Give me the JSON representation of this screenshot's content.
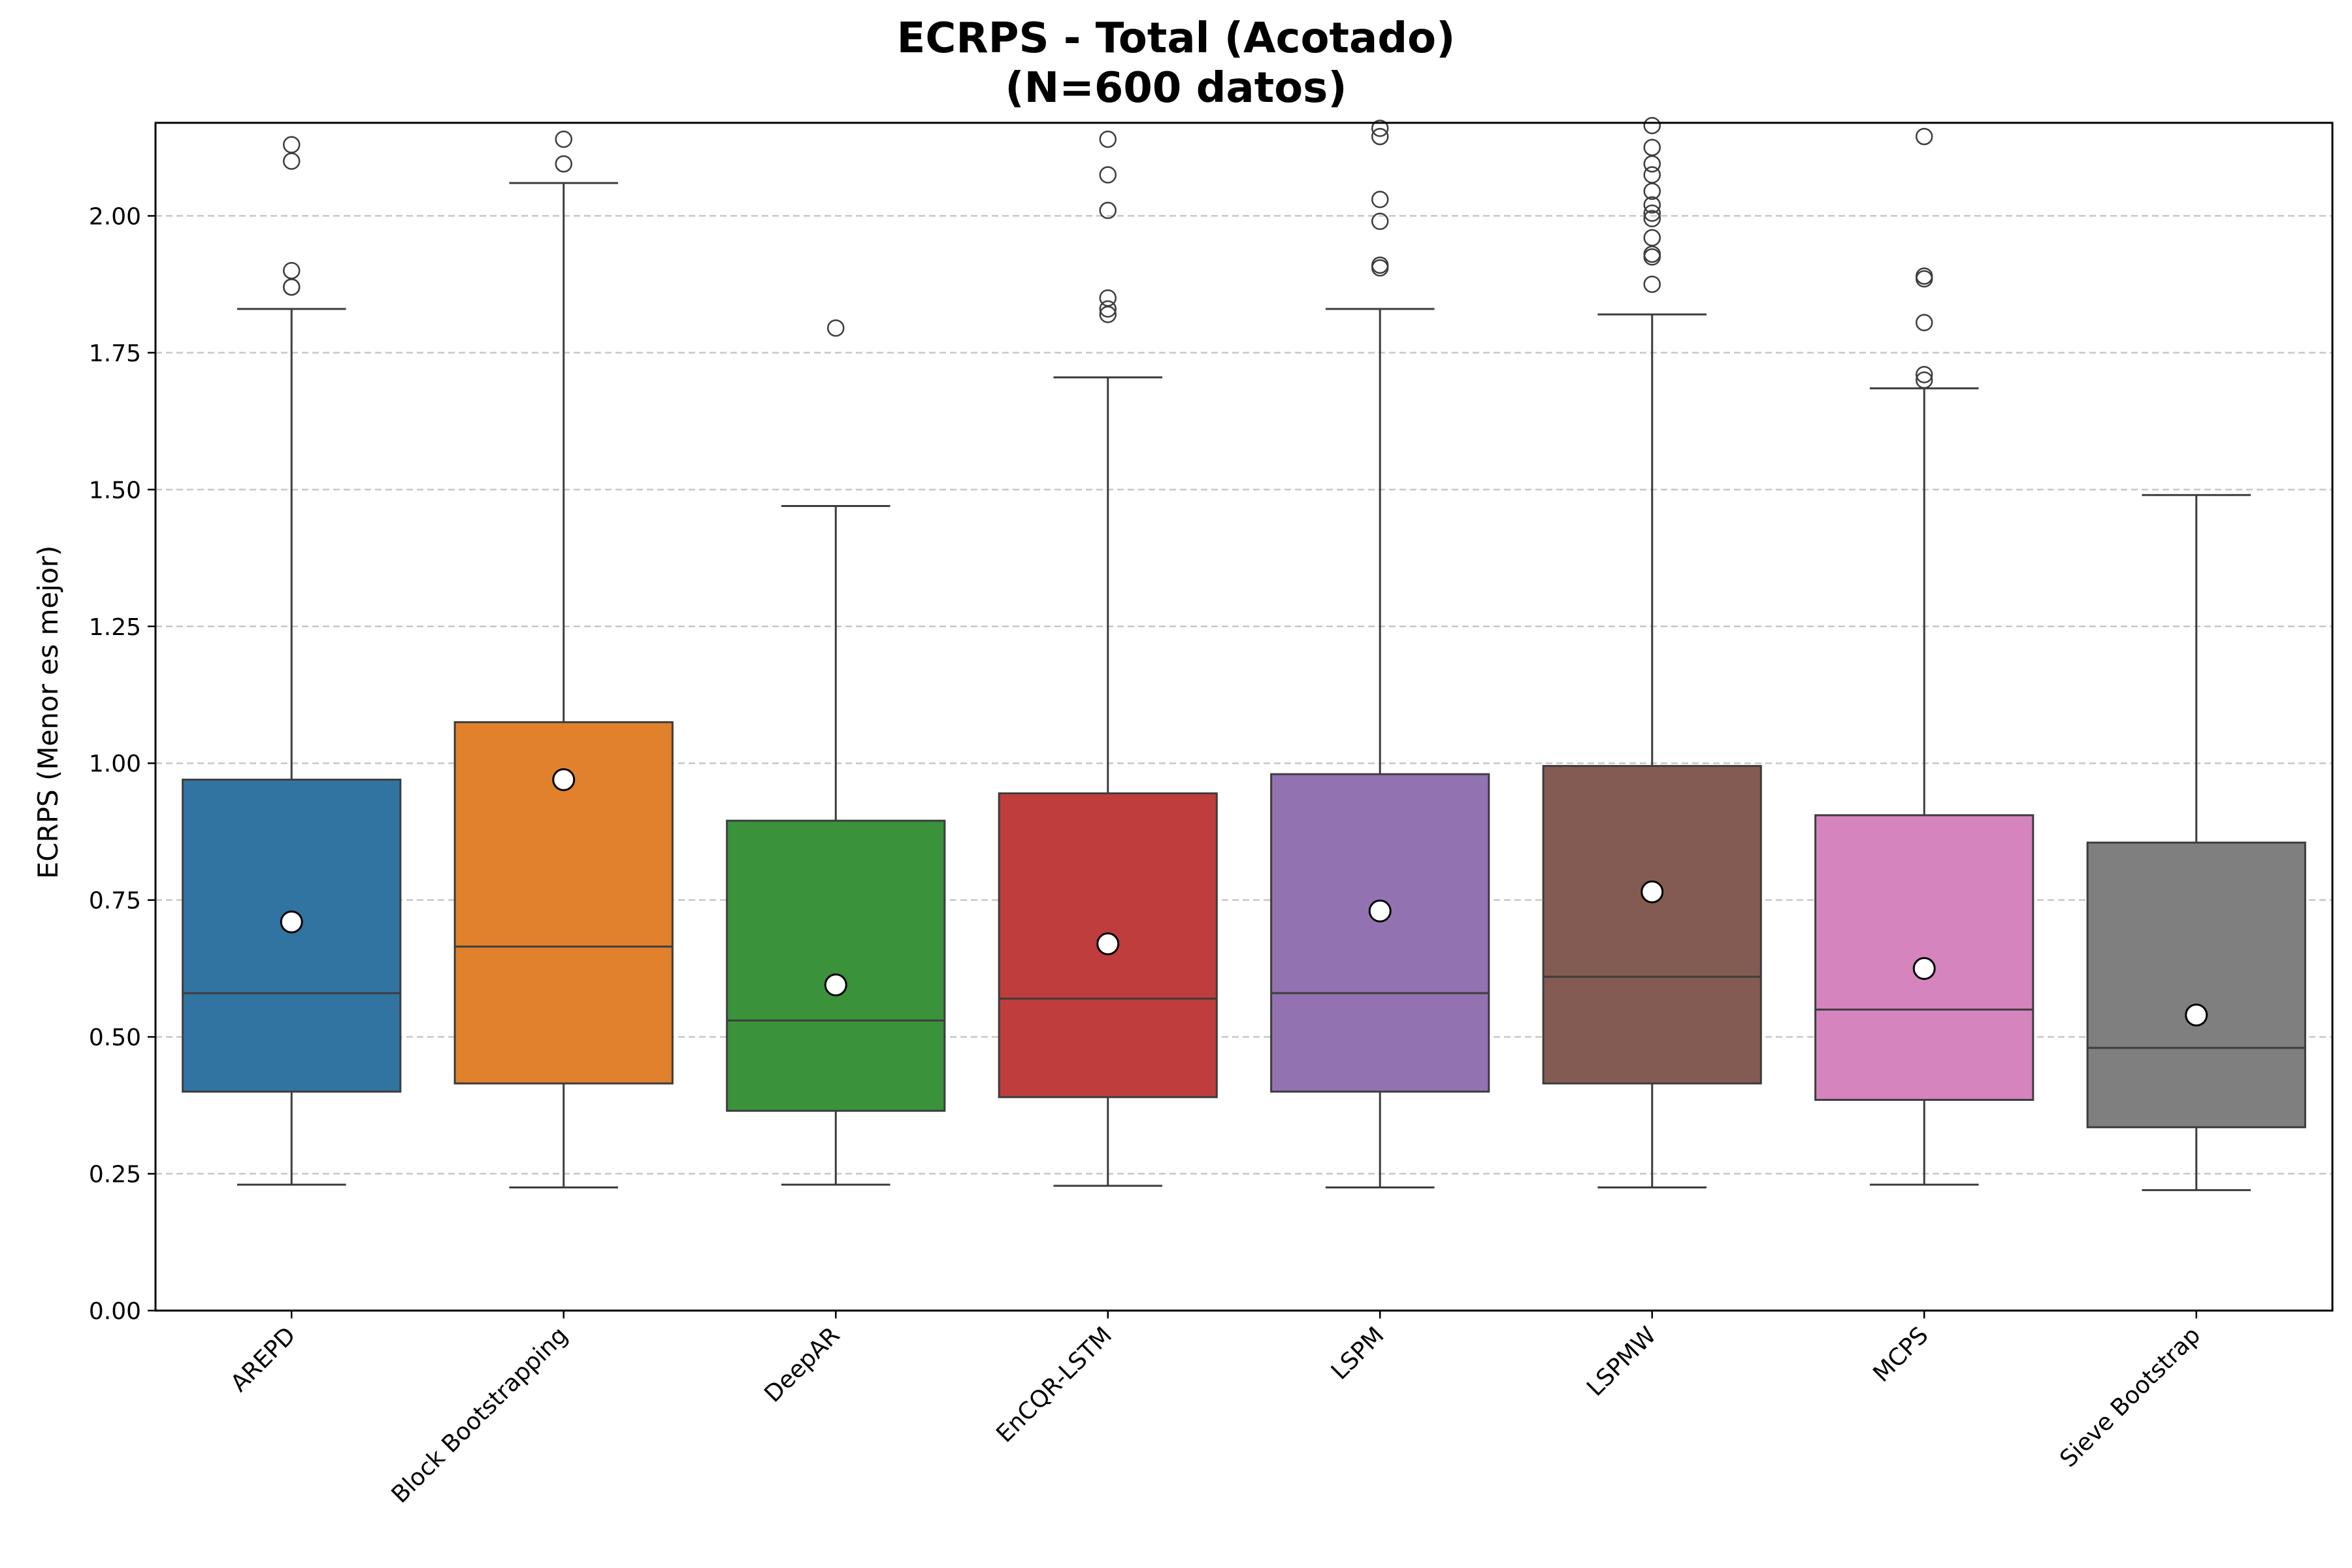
{
  "chart_data": {
    "type": "box",
    "title_line1": "ECRPS - Total (Acotado)",
    "title_line2": "(N=600 datos)",
    "xlabel": "",
    "ylabel": "ECRPS (Menor es mejor)",
    "ylim": [
      0,
      2.17
    ],
    "yticks": [
      "0.00",
      "0.25",
      "0.50",
      "0.75",
      "1.00",
      "1.25",
      "1.50",
      "1.75",
      "2.00"
    ],
    "grid": "horizontal dashed",
    "categories": [
      "AREPD",
      "Block Bootstrapping",
      "DeepAR",
      "EnCQR-LSTM",
      "LSPM",
      "LSPMW",
      "MCPS",
      "Sieve Bootstrap"
    ],
    "colors": [
      "#3274a1",
      "#e1812c",
      "#3a923a",
      "#c03d3e",
      "#9372b2",
      "#845b53",
      "#d684bd",
      "#7f7f7f"
    ],
    "boxes": [
      {
        "whislo": 0.23,
        "q1": 0.4,
        "median": 0.58,
        "q3": 0.97,
        "whishi": 1.83,
        "mean": 0.71,
        "fliers": [
          1.87,
          1.87,
          1.9,
          2.1,
          2.13
        ]
      },
      {
        "whislo": 0.225,
        "q1": 0.415,
        "median": 0.665,
        "q3": 1.075,
        "whishi": 2.06,
        "mean": 0.97,
        "fliers": [
          2.095,
          2.14
        ]
      },
      {
        "whislo": 0.23,
        "q1": 0.365,
        "median": 0.53,
        "q3": 0.895,
        "whishi": 1.47,
        "mean": 0.595,
        "fliers": [
          1.795
        ]
      },
      {
        "whislo": 0.228,
        "q1": 0.39,
        "median": 0.57,
        "q3": 0.945,
        "whishi": 1.705,
        "mean": 0.67,
        "fliers": [
          1.82,
          1.83,
          1.85,
          2.01,
          2.075,
          2.14
        ]
      },
      {
        "whislo": 0.225,
        "q1": 0.4,
        "median": 0.58,
        "q3": 0.98,
        "whishi": 1.83,
        "mean": 0.73,
        "fliers": [
          1.905,
          1.91,
          1.99,
          2.03,
          2.145,
          2.16
        ]
      },
      {
        "whislo": 0.225,
        "q1": 0.415,
        "median": 0.61,
        "q3": 0.995,
        "whishi": 1.82,
        "mean": 0.765,
        "fliers": [
          1.875,
          1.925,
          1.93,
          1.96,
          1.995,
          2.005,
          2.02,
          2.045,
          2.075,
          2.095,
          2.125,
          2.165
        ]
      },
      {
        "whislo": 0.23,
        "q1": 0.385,
        "median": 0.55,
        "q3": 0.905,
        "whishi": 1.685,
        "mean": 0.625,
        "fliers": [
          1.7,
          1.71,
          1.805,
          1.885,
          1.89,
          2.145
        ]
      },
      {
        "whislo": 0.22,
        "q1": 0.335,
        "median": 0.48,
        "q3": 0.855,
        "whishi": 1.49,
        "mean": 0.54,
        "fliers": []
      }
    ]
  }
}
